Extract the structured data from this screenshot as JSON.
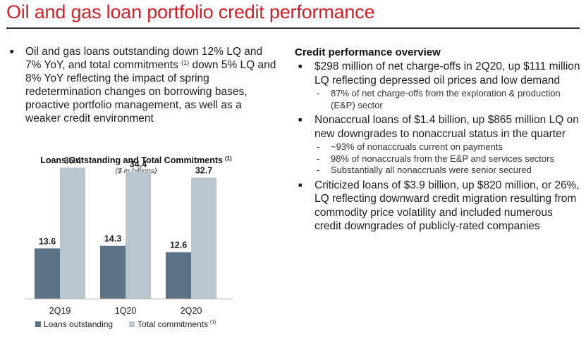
{
  "title": "Oil and gas loan portfolio credit performance",
  "left": {
    "bullet": "Oil and gas loans outstanding down 12% LQ and 7% YoY, and total commitments",
    "bullet_sup": "(1)",
    "bullet_rest": " down 5% LQ and 8% YoY reflecting the impact of spring redetermination changes on borrowing bases, proactive portfolio management, as well as a weaker credit environment"
  },
  "chart_data": {
    "type": "bar",
    "title": "Loans Outstanding and Total Commitments",
    "title_sup": "(1)",
    "subtitle": "($ in billions)",
    "categories": [
      "2Q19",
      "1Q20",
      "2Q20"
    ],
    "series": [
      {
        "name": "Loans outstanding",
        "values": [
          13.6,
          14.3,
          12.6
        ],
        "labels": [
          "13.6",
          "14.3",
          "12.6"
        ],
        "color": "#5b7387"
      },
      {
        "name": "Total commitments",
        "name_sup": "(1)",
        "values": [
          35.4,
          34.4,
          32.7
        ],
        "labels": [
          "35.4",
          "34.4",
          "32.7"
        ],
        "color": "#b9c6cf"
      }
    ],
    "ylim": [
      0,
      40
    ],
    "grid": false,
    "legend_position": "bottom"
  },
  "overview": {
    "heading": "Credit performance overview",
    "items": [
      {
        "text": "$298 million of net charge-offs in 2Q20, up $111 million LQ reflecting depressed oil prices and low demand",
        "subs": [
          "87% of net charge-offs from the exploration & production (E&P) sector"
        ]
      },
      {
        "text": "Nonaccrual loans of $1.4 billion, up $865 million LQ on new downgrades to nonaccrual status in the quarter",
        "subs": [
          "~93% of nonaccruals current on payments",
          "98% of nonaccruals from the E&P and services sectors",
          "Substantially all nonaccruals were senior secured"
        ]
      },
      {
        "text": "Criticized loans of $3.9 billion, up $820 million, or 26%, LQ reflecting downward credit migration resulting from commodity price volatility and included numerous credit downgrades of publicly-rated companies",
        "subs": []
      }
    ]
  },
  "colors": {
    "brand_red": "#d71e28",
    "loans_bar": "#5b7387",
    "commitments_bar": "#b9c6cf"
  },
  "icons": {
    "bullet": "black-square-bullet"
  }
}
